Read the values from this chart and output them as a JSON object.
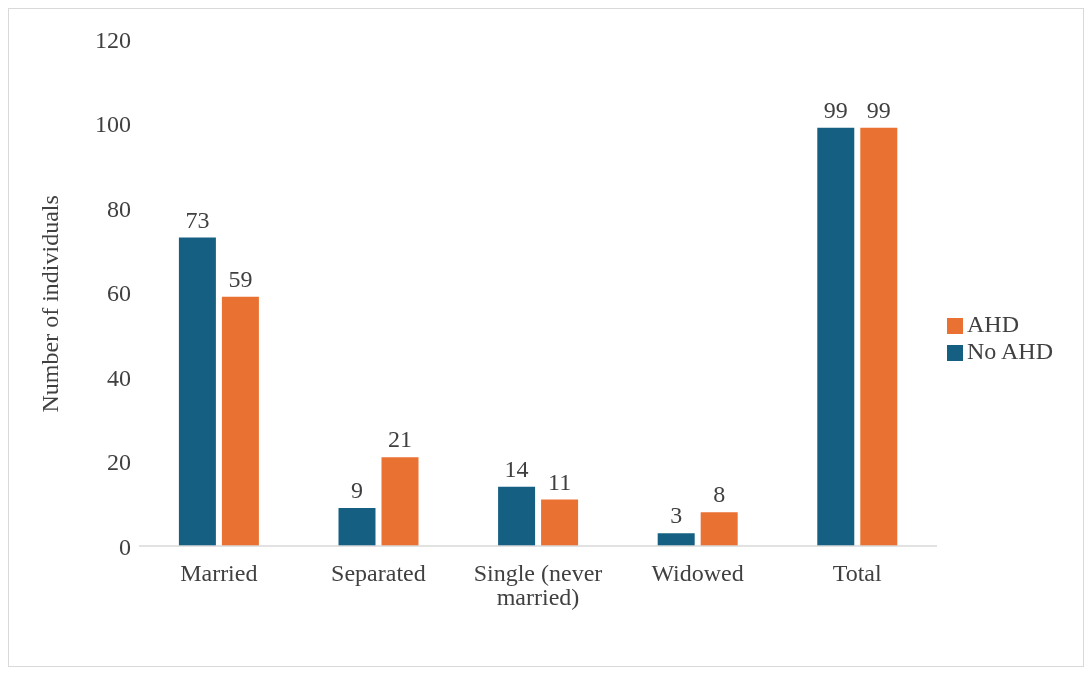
{
  "chart_data": {
    "type": "bar",
    "ylabel": "Number of individuals",
    "categories": [
      "Married",
      "Separated",
      "Single (never married)",
      "Widowed",
      "Total"
    ],
    "series": [
      {
        "name": "No AHD",
        "color": "#156082",
        "values": [
          73,
          9,
          14,
          3,
          99
        ]
      },
      {
        "name": "AHD",
        "color": "#e97132",
        "values": [
          59,
          21,
          11,
          8,
          99
        ]
      }
    ],
    "ylim": [
      0,
      120
    ],
    "yticks": [
      0,
      20,
      40,
      60,
      80,
      100,
      120
    ],
    "grid": false,
    "legend": "right",
    "data_labels": true
  }
}
